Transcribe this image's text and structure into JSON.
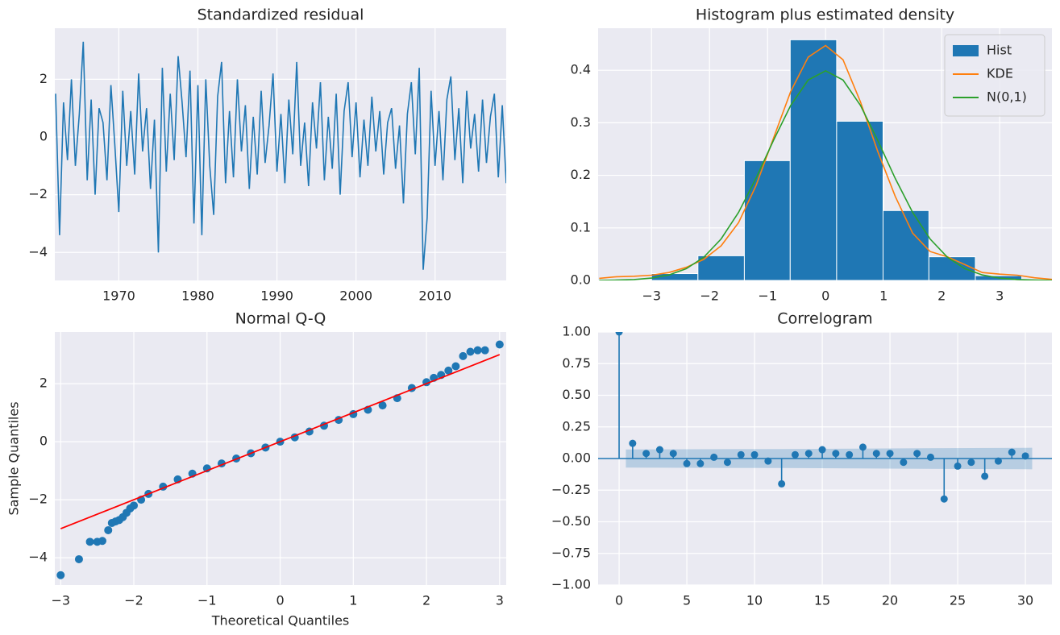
{
  "chart_data": [
    {
      "type": "line",
      "title": "Standardized residual",
      "color": "#1f77b4",
      "x": [
        1962,
        1962.5,
        1963,
        1963.5,
        1964,
        1964.5,
        1965,
        1965.5,
        1966,
        1966.5,
        1967,
        1967.5,
        1968,
        1968.5,
        1969,
        1969.5,
        1970,
        1970.5,
        1971,
        1971.5,
        1972,
        1972.5,
        1973,
        1973.5,
        1974,
        1974.5,
        1975,
        1975.5,
        1976,
        1976.5,
        1977,
        1977.5,
        1978,
        1978.5,
        1979,
        1979.5,
        1980,
        1980.5,
        1981,
        1981.5,
        1982,
        1982.5,
        1983,
        1983.5,
        1984,
        1984.5,
        1985,
        1985.5,
        1986,
        1986.5,
        1987,
        1987.5,
        1988,
        1988.5,
        1989,
        1989.5,
        1990,
        1990.5,
        1991,
        1991.5,
        1992,
        1992.5,
        1993,
        1993.5,
        1994,
        1994.5,
        1995,
        1995.5,
        1996,
        1996.5,
        1997,
        1997.5,
        1998,
        1998.5,
        1999,
        1999.5,
        2000,
        2000.5,
        2001,
        2001.5,
        2002,
        2002.5,
        2003,
        2003.5,
        2004,
        2004.5,
        2005,
        2005.5,
        2006,
        2006.5,
        2007,
        2007.5,
        2008,
        2008.5,
        2009,
        2009.5,
        2010,
        2010.5,
        2011,
        2011.5,
        2012,
        2012.5,
        2013,
        2013.5,
        2014,
        2014.5,
        2015,
        2015.5,
        2016,
        2016.5,
        2017,
        2017.5,
        2018,
        2018.5,
        2019
      ],
      "values": [
        1.5,
        -3.4,
        1.2,
        -0.8,
        2.0,
        -1.0,
        0.8,
        3.3,
        -1.5,
        1.3,
        -2.0,
        1.0,
        0.5,
        -1.5,
        1.8,
        -0.3,
        -2.6,
        1.6,
        -1.0,
        0.9,
        -1.3,
        2.2,
        -0.5,
        1.0,
        -1.8,
        0.6,
        -4.0,
        2.4,
        -1.2,
        1.5,
        -0.8,
        2.8,
        1.2,
        -0.7,
        2.3,
        -3.0,
        1.8,
        -3.4,
        2.0,
        -1.0,
        -2.7,
        1.4,
        2.6,
        -1.6,
        0.9,
        -1.4,
        2.0,
        -0.5,
        1.1,
        -1.8,
        0.7,
        -1.3,
        1.6,
        -0.9,
        0.4,
        2.2,
        -1.2,
        0.8,
        -1.6,
        1.3,
        -0.6,
        2.6,
        -1.0,
        0.5,
        -1.7,
        1.2,
        -0.4,
        1.9,
        -1.5,
        0.7,
        -1.1,
        1.5,
        -2.0,
        0.9,
        1.9,
        -0.7,
        1.2,
        -1.4,
        0.6,
        -1.0,
        1.4,
        -0.5,
        0.9,
        -1.3,
        0.5,
        1.0,
        -1.1,
        0.4,
        -2.3,
        0.8,
        1.9,
        -0.6,
        2.4,
        -4.6,
        -2.8,
        1.6,
        -1.0,
        0.9,
        -1.5,
        1.3,
        2.1,
        -0.8,
        1.0,
        -1.6,
        1.6,
        -0.4,
        0.8,
        -1.2,
        1.3,
        -0.9,
        0.7,
        1.5,
        -1.4,
        1.1,
        -1.6
      ],
      "xlim": [
        1961.9,
        2019.0
      ],
      "ylim": [
        -4.97,
        3.77
      ],
      "xticks": [
        1970,
        1980,
        1990,
        2000,
        2010
      ],
      "yticks": [
        {
          "value": -4,
          "label": "−4"
        },
        {
          "value": -2,
          "label": "−2"
        },
        0,
        2
      ],
      "grid": true
    },
    {
      "type": "histogram",
      "title": "Histogram plus estimated density",
      "name": "Hist",
      "color": "#1f77b4",
      "bins": [
        -3.0,
        -2.2,
        -1.4,
        -0.61,
        0.19,
        0.99,
        1.78,
        2.58,
        3.38
      ],
      "values": [
        0.013,
        0.047,
        0.228,
        0.458,
        0.303,
        0.133,
        0.045,
        0.009
      ],
      "series": [
        {
          "name": "KDE",
          "color": "#ff7f0e",
          "x": [
            -3.9,
            -3.6,
            -3.3,
            -3.0,
            -2.7,
            -2.4,
            -2.1,
            -1.8,
            -1.5,
            -1.2,
            -0.9,
            -0.6,
            -0.3,
            0,
            0.3,
            0.6,
            0.9,
            1.2,
            1.5,
            1.8,
            2.1,
            2.4,
            2.7,
            3.0,
            3.3,
            3.6,
            3.9
          ],
          "values": [
            0.004,
            0.007,
            0.008,
            0.01,
            0.015,
            0.025,
            0.04,
            0.066,
            0.11,
            0.18,
            0.27,
            0.36,
            0.425,
            0.447,
            0.42,
            0.34,
            0.245,
            0.16,
            0.09,
            0.055,
            0.045,
            0.03,
            0.015,
            0.012,
            0.01,
            0.005,
            0.002
          ]
        },
        {
          "name": "N(0,1)",
          "color": "#2ca02c",
          "x": [
            -3.9,
            -3.6,
            -3.3,
            -3.0,
            -2.7,
            -2.4,
            -2.1,
            -1.8,
            -1.5,
            -1.2,
            -0.9,
            -0.6,
            -0.3,
            0,
            0.3,
            0.6,
            0.9,
            1.2,
            1.5,
            1.8,
            2.1,
            2.4,
            2.7,
            3.0,
            3.3,
            3.6,
            3.9
          ],
          "values": [
            0.0002,
            0.0006,
            0.0017,
            0.0044,
            0.0104,
            0.0224,
            0.044,
            0.079,
            0.1295,
            0.1942,
            0.2661,
            0.3332,
            0.3814,
            0.3989,
            0.3814,
            0.3332,
            0.2661,
            0.1942,
            0.1295,
            0.079,
            0.044,
            0.0224,
            0.0104,
            0.0044,
            0.0017,
            0.0006,
            0.0002
          ]
        }
      ],
      "xlim": [
        -3.92,
        3.9
      ],
      "ylim": [
        0,
        0.48
      ],
      "xticks": [
        {
          "value": -3,
          "label": "−3"
        },
        {
          "value": -2,
          "label": "−2"
        },
        {
          "value": -1,
          "label": "−1"
        },
        0,
        1,
        2,
        3
      ],
      "yticks": [
        {
          "value": 0,
          "label": "0.0"
        },
        0.1,
        0.2,
        0.3,
        0.4
      ],
      "legend": "upper right",
      "grid": true
    },
    {
      "type": "scatter",
      "title": "Normal Q-Q",
      "x_label": "Theoretical Quantiles",
      "y_label": "Sample Quantiles",
      "color": "#1f77b4",
      "x": [
        -3.0,
        -2.75,
        -2.6,
        -2.5,
        -2.43,
        -2.35,
        -2.3,
        -2.25,
        -2.2,
        -2.15,
        -2.1,
        -2.05,
        -2.0,
        -1.9,
        -1.8,
        -1.6,
        -1.4,
        -1.2,
        -1.0,
        -0.8,
        -0.6,
        -0.4,
        -0.2,
        0,
        0.2,
        0.4,
        0.6,
        0.8,
        1.0,
        1.2,
        1.4,
        1.6,
        1.8,
        2.0,
        2.1,
        2.2,
        2.3,
        2.4,
        2.5,
        2.6,
        2.7,
        2.8,
        3.0
      ],
      "values": [
        -4.6,
        -4.05,
        -3.45,
        -3.45,
        -3.42,
        -3.05,
        -2.8,
        -2.75,
        -2.7,
        -2.6,
        -2.45,
        -2.3,
        -2.2,
        -2.0,
        -1.8,
        -1.55,
        -1.3,
        -1.1,
        -0.92,
        -0.75,
        -0.58,
        -0.4,
        -0.2,
        0,
        0.15,
        0.35,
        0.55,
        0.75,
        0.95,
        1.1,
        1.25,
        1.5,
        1.85,
        2.05,
        2.2,
        2.3,
        2.45,
        2.6,
        2.95,
        3.1,
        3.15,
        3.15,
        3.35
      ],
      "reference_line": {
        "color": "#ff0000",
        "x": [
          -3,
          3
        ],
        "values": [
          -3,
          3
        ]
      },
      "xlim": [
        -3.08,
        3.09
      ],
      "ylim": [
        -4.94,
        3.78
      ],
      "xticks": [
        {
          "value": -3,
          "label": "−3"
        },
        {
          "value": -2,
          "label": "−2"
        },
        {
          "value": -1,
          "label": "−1"
        },
        0,
        1,
        2,
        3
      ],
      "yticks": [
        {
          "value": -4,
          "label": "−4"
        },
        {
          "value": -2,
          "label": "−2"
        },
        0,
        2
      ],
      "grid": true
    },
    {
      "type": "stem",
      "title": "Correlogram",
      "color": "#1f77b4",
      "x": [
        0,
        1,
        2,
        3,
        4,
        5,
        6,
        7,
        8,
        9,
        10,
        11,
        12,
        13,
        14,
        15,
        16,
        17,
        18,
        19,
        20,
        21,
        22,
        23,
        24,
        25,
        26,
        27,
        28,
        29,
        30
      ],
      "values": [
        1.0,
        0.12,
        0.04,
        0.07,
        0.04,
        -0.04,
        -0.04,
        0.01,
        -0.03,
        0.03,
        0.03,
        -0.02,
        -0.2,
        0.03,
        0.04,
        0.07,
        0.04,
        0.03,
        0.09,
        0.04,
        0.04,
        -0.03,
        0.04,
        0.01,
        -0.32,
        -0.06,
        -0.03,
        -0.14,
        -0.02,
        0.05,
        0.02
      ],
      "band": {
        "color": "#1f77b4",
        "x": [
          0.5,
          12,
          24,
          30.5
        ],
        "upper": [
          0.072,
          0.075,
          0.082,
          0.085
        ],
        "lower": [
          -0.072,
          -0.075,
          -0.082,
          -0.085
        ]
      },
      "xlim": [
        -1.55,
        31.96
      ],
      "ylim": [
        -1,
        1
      ],
      "xticks": [
        0,
        5,
        10,
        15,
        20,
        25,
        30
      ],
      "yticks": [
        {
          "value": -1,
          "label": "−1.00"
        },
        {
          "value": -0.75,
          "label": "−0.75"
        },
        {
          "value": -0.5,
          "label": "−0.50"
        },
        {
          "value": -0.25,
          "label": "−0.25"
        },
        {
          "value": 0,
          "label": "0.00"
        },
        {
          "value": 0.25,
          "label": "0.25"
        },
        {
          "value": 0.5,
          "label": "0.50"
        },
        {
          "value": 0.75,
          "label": "0.75"
        },
        {
          "value": 1,
          "label": "1.00"
        }
      ],
      "grid": true
    }
  ]
}
